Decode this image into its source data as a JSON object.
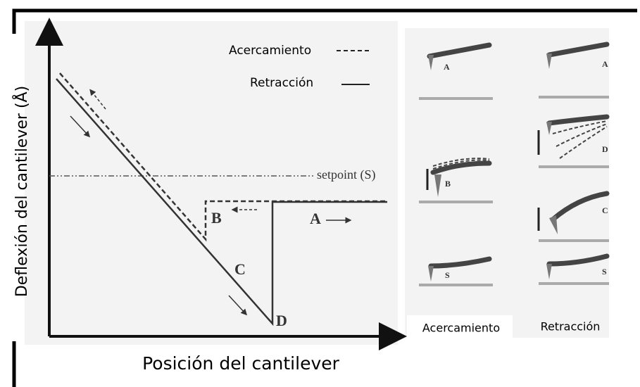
{
  "axes": {
    "y_label": "Deflexión del cantilever (Å)",
    "x_label": "Posición del cantilever"
  },
  "legend": [
    {
      "label": "Acercamiento"
    },
    {
      "label": "Retracción"
    }
  ],
  "annotations": {
    "setpoint": "setpoint (S)",
    "points": [
      "B",
      "A",
      "C",
      "D"
    ]
  },
  "panels": {
    "approach": {
      "caption": "Acercamiento",
      "labels": [
        "A",
        "B",
        "S"
      ]
    },
    "retraction": {
      "caption": "Retracción",
      "labels": [
        "A",
        "D",
        "C",
        "S"
      ]
    }
  }
}
